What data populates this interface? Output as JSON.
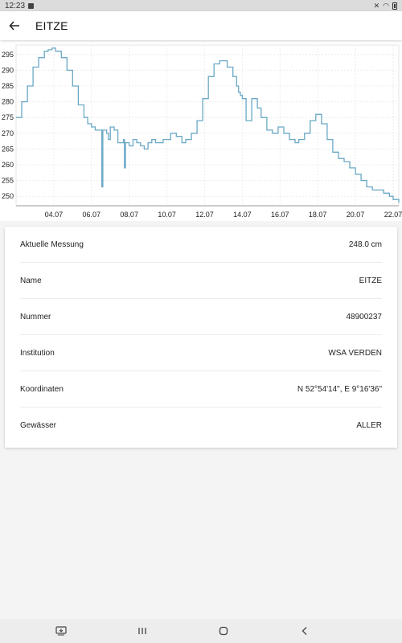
{
  "status_bar": {
    "time": "12:23"
  },
  "app_bar": {
    "title": "EITZE",
    "back_icon": "arrow-left-icon"
  },
  "chart_data": {
    "type": "line",
    "color": "#6aa8c6",
    "x_tick_labels": [
      "04.07",
      "06.07",
      "08.07",
      "10.07",
      "12.07",
      "14.07",
      "16.07",
      "18.07",
      "20.07",
      "22.07"
    ],
    "y_tick_labels": [
      "250",
      "255",
      "260",
      "265",
      "270",
      "275",
      "280",
      "285",
      "290",
      "295"
    ],
    "ylim": [
      247,
      298
    ],
    "xlim": [
      2.0,
      22.3
    ],
    "grid": true,
    "series": [
      {
        "x": [
          2.0,
          2.3,
          2.6,
          2.9,
          3.2,
          3.5,
          3.7,
          3.9,
          4.1,
          4.4,
          4.7,
          5.0,
          5.3,
          5.6,
          5.8,
          6.0,
          6.2,
          6.4,
          6.5,
          6.55,
          6.6,
          6.8,
          6.9,
          7.0,
          7.2,
          7.4,
          7.6,
          7.7,
          7.75,
          7.8,
          8.0,
          8.2,
          8.4,
          8.6,
          8.8,
          9.0,
          9.2,
          9.4,
          9.6,
          9.8,
          10.0,
          10.2,
          10.5,
          10.8,
          11.0,
          11.3,
          11.6,
          11.9,
          12.2,
          12.5,
          12.8,
          13.0,
          13.2,
          13.5,
          13.7,
          13.8,
          13.9,
          14.0,
          14.2,
          14.5,
          14.8,
          15.0,
          15.3,
          15.6,
          15.9,
          16.2,
          16.5,
          16.8,
          17.0,
          17.3,
          17.6,
          17.9,
          18.2,
          18.5,
          18.8,
          19.1,
          19.4,
          19.7,
          20.0,
          20.3,
          20.6,
          20.9,
          21.2,
          21.5,
          21.8,
          22.0,
          22.3
        ],
        "y": [
          275,
          280,
          285,
          291,
          294,
          296,
          296.5,
          297,
          296,
          294,
          290,
          285,
          279,
          275,
          273,
          272,
          271,
          271,
          271,
          253,
          271,
          270,
          268,
          272,
          271,
          267,
          267,
          268,
          259,
          267,
          266,
          268,
          267,
          266,
          265,
          267,
          268,
          267,
          267,
          268,
          268,
          270,
          269,
          267,
          268,
          270,
          274,
          281,
          288,
          292,
          293,
          293,
          291,
          288,
          285,
          283,
          282,
          281,
          274,
          281,
          278,
          275,
          271,
          270,
          272,
          270,
          268,
          267,
          268,
          270,
          274,
          276,
          273,
          268,
          264,
          262,
          261,
          259,
          257,
          255,
          253,
          252,
          252,
          251,
          250,
          249,
          248
        ]
      }
    ]
  },
  "info": {
    "rows": [
      {
        "label": "Aktuelle Messung",
        "value": "248.0 cm"
      },
      {
        "label": "Name",
        "value": "EITZE"
      },
      {
        "label": "Nummer",
        "value": "48900237"
      },
      {
        "label": "Institution",
        "value": "WSA VERDEN"
      },
      {
        "label": "Koordinaten",
        "value": "N 52°54'14\", E 9°16'36\""
      },
      {
        "label": "Gewässer",
        "value": "ALLER"
      }
    ]
  },
  "nav_bar": {
    "icons": [
      "screenshot-icon",
      "recent-apps-icon",
      "home-icon",
      "back-icon"
    ]
  }
}
